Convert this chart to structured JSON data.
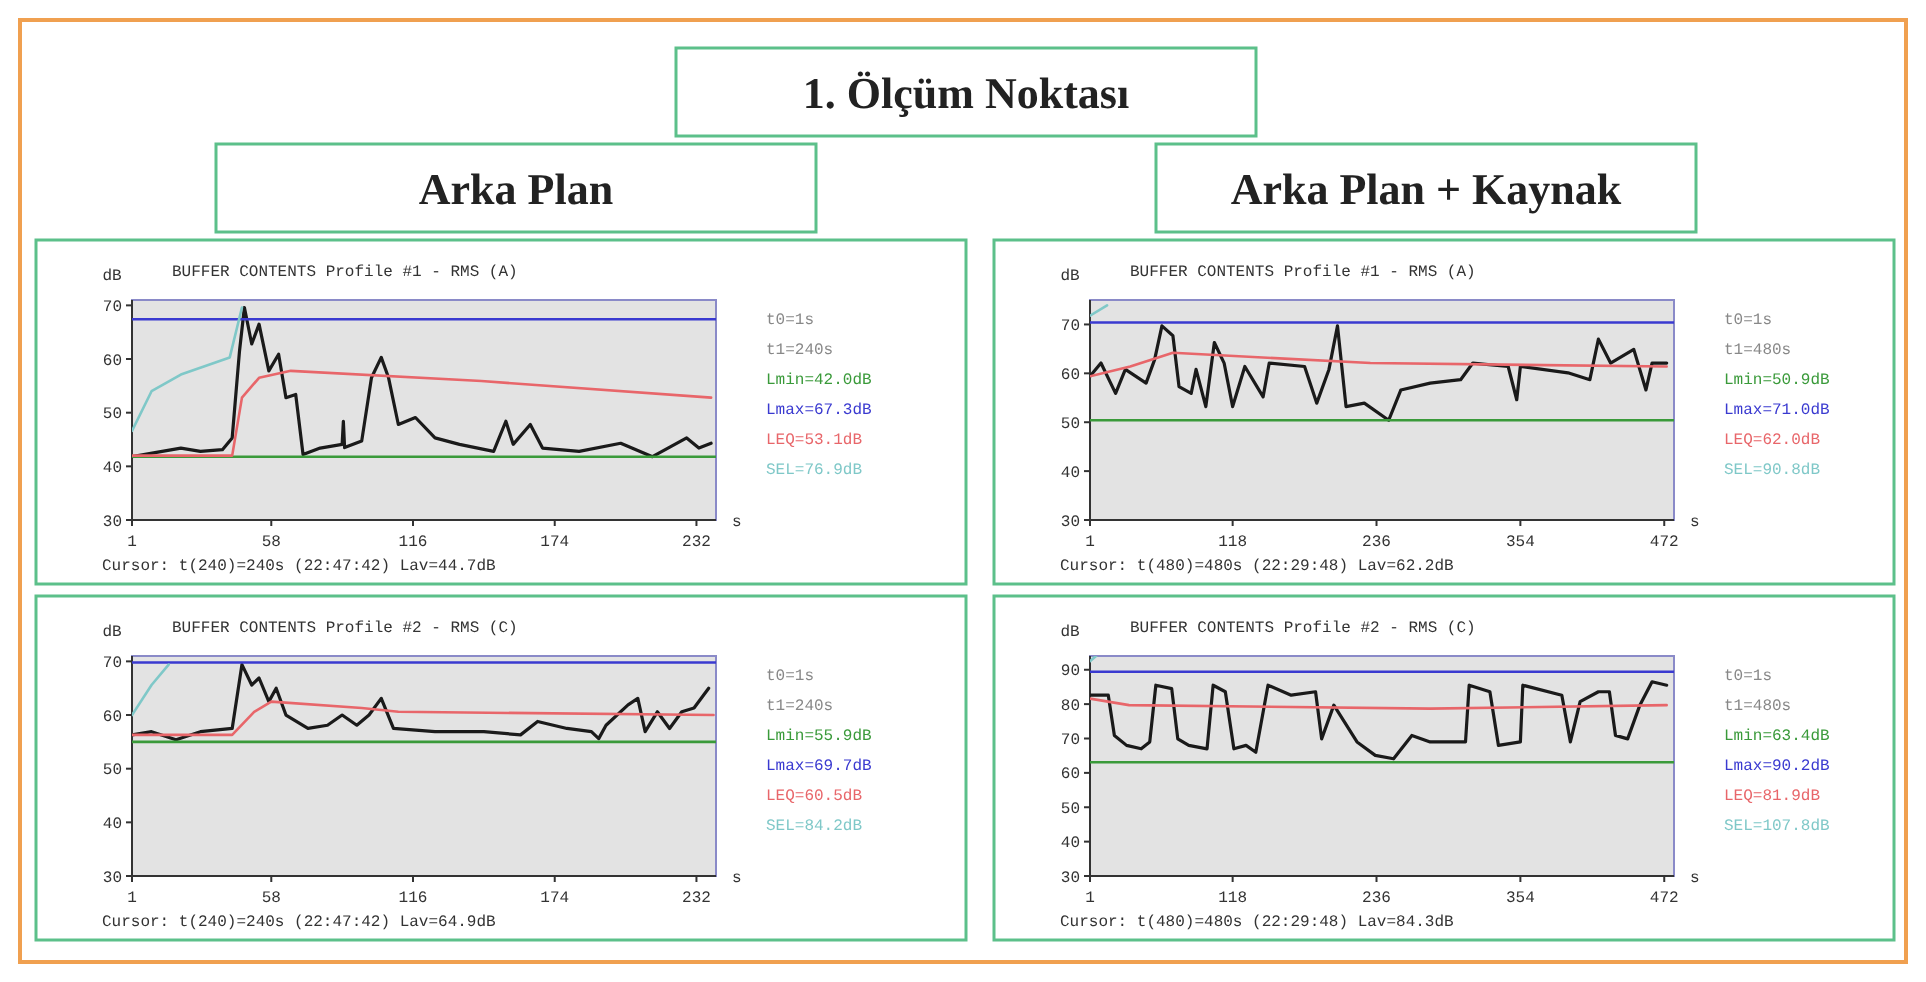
{
  "chart_data": [
    {
      "type": "line",
      "title": "BUFFER CONTENTS  Profile #1 - RMS (A)",
      "ylabel": "dB",
      "xlabel": "s",
      "xlim": [
        1,
        240
      ],
      "xticks": [
        1,
        58,
        116,
        174,
        232
      ],
      "ylim": [
        30,
        71
      ],
      "yticks": [
        30,
        40,
        50,
        60,
        70
      ],
      "legend": "right",
      "marker": "none",
      "line_style": "solid",
      "annotations": [
        "1. Ölçüm Noktası",
        "Arka Plan",
        "t0=1s",
        "t1=240s",
        "Cursor:  t(240)=240s (22:47:42)  Lav=44.7dB"
      ],
      "series": [
        {
          "color": "#1a1a1a",
          "x": [
            1,
            11,
            21,
            29,
            38,
            42,
            45,
            47,
            50,
            53,
            57,
            61,
            64,
            68,
            71,
            78,
            87,
            87.5,
            88,
            95,
            99,
            103,
            106,
            110,
            117,
            125,
            135,
            149,
            154,
            157,
            164,
            169,
            184,
            201,
            214,
            228,
            233,
            238
          ],
          "values": [
            41.8,
            42.6,
            43.4,
            42.8,
            43.1,
            45.3,
            61.5,
            69.6,
            62.8,
            66.5,
            57.8,
            60.9,
            52.8,
            53.4,
            42.2,
            43.4,
            44.1,
            48.4,
            43.5,
            44.7,
            56.5,
            60.3,
            56.5,
            47.8,
            49.1,
            45.3,
            44.1,
            42.8,
            48.4,
            44.1,
            47.8,
            43.4,
            42.8,
            44.3,
            41.8,
            45.3,
            43.4,
            44.3
          ]
        },
        {
          "name": "Lmin=42.0dB",
          "color": "#3a9a3a",
          "x": [
            1,
            240
          ],
          "values": [
            41.8,
            41.8
          ]
        },
        {
          "name": "Lmax=67.3dB",
          "color": "#3a3ad0",
          "x": [
            1,
            240
          ],
          "values": [
            67.4,
            67.4
          ]
        },
        {
          "name": "LEQ=53.1dB",
          "color": "#e8666a",
          "x": [
            1,
            42,
            46,
            53,
            66,
            144,
            238
          ],
          "values": [
            42,
            42,
            52.8,
            56.5,
            57.8,
            55.9,
            52.8
          ]
        },
        {
          "name": "SEL=76.9dB",
          "color": "#7fc8c8",
          "x": [
            1,
            9,
            21,
            41,
            46
          ],
          "values": [
            46.6,
            54,
            57.1,
            60.3,
            69.6
          ]
        }
      ]
    },
    {
      "type": "line",
      "title": "BUFFER CONTENTS  Profile #1 - RMS (A)",
      "ylabel": "dB",
      "xlabel": "s",
      "xlim": [
        1,
        480
      ],
      "xticks": [
        1,
        118,
        236,
        354,
        472
      ],
      "ylim": [
        30,
        75
      ],
      "yticks": [
        30,
        40,
        50,
        60,
        70
      ],
      "legend": "right",
      "marker": "none",
      "line_style": "solid",
      "annotations": [
        "Arka Plan + Kaynak",
        "t0=1s",
        "t1=480s",
        "Cursor:  t(480)=480s (22:29:48)  Lav=62.2dB"
      ],
      "series": [
        {
          "color": "#1a1a1a",
          "x": [
            1,
            10,
            22,
            30,
            47,
            54,
            60,
            69,
            74,
            84,
            88,
            96,
            103,
            111,
            118,
            128,
            143,
            148,
            177,
            187,
            197,
            204,
            211,
            226,
            246,
            256,
            280,
            305,
            315,
            344,
            351,
            354,
            393,
            411,
            418,
            428,
            447,
            457,
            462,
            474
          ],
          "values": [
            59.4,
            62.1,
            55.9,
            60.8,
            58,
            62.8,
            69.7,
            67.7,
            57.3,
            55.9,
            60.8,
            53.2,
            66.3,
            62.1,
            53.2,
            61.4,
            55.2,
            62.1,
            61.4,
            53.9,
            60.8,
            69.7,
            53.2,
            53.9,
            50.4,
            56.6,
            58,
            58.7,
            62.1,
            61.4,
            54.6,
            61.4,
            60.1,
            58.7,
            67,
            62.1,
            64.9,
            56.6,
            62.1,
            62.1
          ]
        },
        {
          "name": "Lmin=50.9dB",
          "color": "#3a9a3a",
          "x": [
            1,
            480
          ],
          "values": [
            50.4,
            50.4
          ]
        },
        {
          "name": "Lmax=71.0dB",
          "color": "#3a3ad0",
          "x": [
            1,
            480
          ],
          "values": [
            70.4,
            70.4
          ]
        },
        {
          "name": "LEQ=62.0dB",
          "color": "#e8666a",
          "x": [
            1,
            34,
            69,
            231,
            474
          ],
          "values": [
            59.4,
            61.4,
            64.2,
            62.1,
            61.4
          ]
        },
        {
          "name": "SEL=90.8dB",
          "color": "#7fc8c8",
          "x": [
            1,
            15
          ],
          "values": [
            71.8,
            73.9
          ]
        }
      ]
    },
    {
      "type": "line",
      "title": "BUFFER CONTENTS  Profile #2 - RMS (C)",
      "ylabel": "dB",
      "xlabel": "s",
      "xlim": [
        1,
        240
      ],
      "xticks": [
        1,
        58,
        116,
        174,
        232
      ],
      "ylim": [
        30,
        71
      ],
      "yticks": [
        30,
        40,
        50,
        60,
        70
      ],
      "legend": "right",
      "marker": "none",
      "line_style": "solid",
      "annotations": [
        "t0=1s",
        "t1=240s",
        "Cursor:  t(240)=240s (22:47:42)  Lav=64.9dB"
      ],
      "series": [
        {
          "color": "#1a1a1a",
          "x": [
            1,
            9,
            19,
            29,
            42,
            46,
            50,
            53,
            57,
            60,
            64,
            73,
            81,
            87,
            93,
            98,
            103,
            108,
            125,
            145,
            160,
            167,
            179,
            189,
            192,
            195,
            204,
            208,
            211,
            216,
            221,
            226,
            231,
            237
          ],
          "values": [
            56.3,
            56.9,
            55.4,
            56.9,
            57.5,
            69.4,
            65.6,
            66.9,
            62.5,
            65,
            60,
            57.5,
            58.1,
            60,
            58.1,
            60,
            63.1,
            57.5,
            56.9,
            56.9,
            56.3,
            58.8,
            57.5,
            56.9,
            55.6,
            58.1,
            61.9,
            63.1,
            56.9,
            60.6,
            57.5,
            60.6,
            61.3,
            65
          ]
        },
        {
          "name": "Lmin=55.9dB",
          "color": "#3a9a3a",
          "x": [
            1,
            240
          ],
          "values": [
            55,
            55
          ]
        },
        {
          "name": "Lmax=69.7dB",
          "color": "#3a3ad0",
          "x": [
            1,
            240
          ],
          "values": [
            69.8,
            69.8
          ]
        },
        {
          "name": "LEQ=60.5dB",
          "color": "#e8666a",
          "x": [
            1,
            42,
            51,
            58,
            95,
            110,
            239
          ],
          "values": [
            56.3,
            56.3,
            60.6,
            62.5,
            61.3,
            60.6,
            60
          ]
        },
        {
          "name": "SEL=84.2dB",
          "color": "#7fc8c8",
          "x": [
            1,
            9,
            16
          ],
          "values": [
            60,
            65.6,
            69.4
          ]
        }
      ]
    },
    {
      "type": "line",
      "title": "BUFFER CONTENTS  Profile #2 - RMS (C)",
      "ylabel": "dB",
      "xlabel": "s",
      "xlim": [
        1,
        480
      ],
      "xticks": [
        1,
        118,
        236,
        354,
        472
      ],
      "ylim": [
        30,
        94
      ],
      "yticks": [
        30,
        40,
        50,
        60,
        70,
        80,
        90
      ],
      "legend": "right",
      "marker": "none",
      "line_style": "solid",
      "annotations": [
        "t0=1s",
        "t1=480s",
        "Cursor:  t(480)=480s (22:29:48)  Lav=84.3dB"
      ],
      "series": [
        {
          "color": "#1a1a1a",
          "x": [
            1,
            16,
            21,
            31,
            43,
            50,
            55,
            68,
            73,
            82,
            97,
            102,
            112,
            119,
            129,
            137,
            147,
            166,
            186,
            191,
            201,
            220,
            235,
            250,
            265,
            280,
            309,
            312,
            329,
            336,
            354,
            356,
            388,
            395,
            403,
            418,
            427,
            432,
            442,
            452,
            462,
            474
          ],
          "values": [
            82.6,
            82.6,
            70.9,
            68,
            67,
            69,
            85.5,
            84.5,
            69.9,
            68,
            67,
            85.5,
            83.6,
            67,
            68,
            66,
            85.5,
            82.6,
            83.6,
            69.9,
            79.7,
            69,
            65.1,
            64.1,
            70.9,
            69,
            69,
            85.5,
            83.6,
            68,
            69,
            85.5,
            82.6,
            69,
            80.7,
            83.6,
            83.6,
            70.9,
            69.9,
            79.7,
            86.5,
            85.5
          ]
        },
        {
          "name": "Lmin=63.4dB",
          "color": "#3a9a3a",
          "x": [
            1,
            480
          ],
          "values": [
            63.1,
            63.1
          ]
        },
        {
          "name": "Lmax=90.2dB",
          "color": "#3a3ad0",
          "x": [
            1,
            480
          ],
          "values": [
            89.4,
            89.4
          ]
        },
        {
          "name": "LEQ=81.9dB",
          "color": "#e8666a",
          "x": [
            1,
            33,
            280,
            474
          ],
          "values": [
            81.6,
            79.7,
            78.7,
            79.7
          ]
        },
        {
          "name": "SEL=107.8dB",
          "color": "#7fc8c8",
          "x": [
            1,
            6
          ],
          "values": [
            92.5,
            94
          ]
        }
      ]
    }
  ]
}
